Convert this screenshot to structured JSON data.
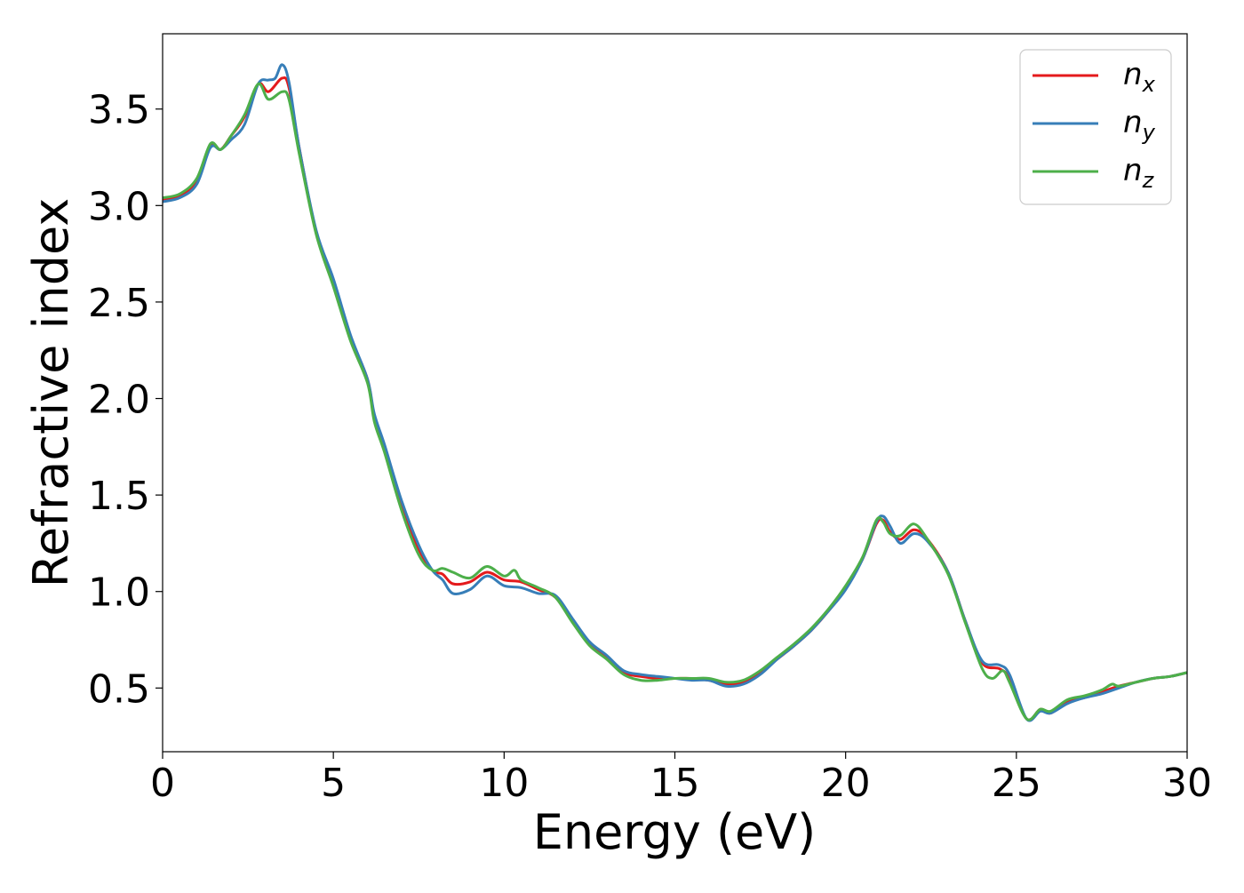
{
  "chart_data": {
    "type": "line",
    "title": "",
    "xlabel": "Energy (eV)",
    "ylabel": "Refractive index",
    "xlim": [
      0,
      30
    ],
    "ylim": [
      0.17,
      3.89
    ],
    "xticks": [
      0,
      5,
      10,
      15,
      20,
      25,
      30
    ],
    "xtick_labels": [
      "0",
      "5",
      "10",
      "15",
      "20",
      "25",
      "30"
    ],
    "yticks": [
      0.5,
      1.0,
      1.5,
      2.0,
      2.5,
      3.0,
      3.5
    ],
    "ytick_labels": [
      "0.5",
      "1.0",
      "1.5",
      "2.0",
      "2.5",
      "3.0",
      "3.5"
    ],
    "grid": false,
    "legend_position": "upper right",
    "series": [
      {
        "name": "n_x",
        "legend_base": "n",
        "legend_sub": "x",
        "color": "#e41a1c",
        "points": [
          [
            0,
            3.03
          ],
          [
            0.5,
            3.05
          ],
          [
            1.0,
            3.13
          ],
          [
            1.4,
            3.31
          ],
          [
            1.7,
            3.29
          ],
          [
            2.0,
            3.36
          ],
          [
            2.4,
            3.46
          ],
          [
            2.8,
            3.63
          ],
          [
            3.1,
            3.59
          ],
          [
            3.5,
            3.66
          ],
          [
            3.7,
            3.61
          ],
          [
            4.0,
            3.3
          ],
          [
            4.5,
            2.86
          ],
          [
            5.0,
            2.6
          ],
          [
            5.5,
            2.32
          ],
          [
            6.0,
            2.1
          ],
          [
            6.2,
            1.9
          ],
          [
            6.5,
            1.74
          ],
          [
            7.0,
            1.45
          ],
          [
            7.5,
            1.22
          ],
          [
            7.9,
            1.11
          ],
          [
            8.2,
            1.09
          ],
          [
            8.5,
            1.04
          ],
          [
            9.0,
            1.05
          ],
          [
            9.5,
            1.1
          ],
          [
            10.0,
            1.06
          ],
          [
            10.5,
            1.05
          ],
          [
            11.0,
            1.01
          ],
          [
            11.5,
            0.97
          ],
          [
            12.0,
            0.85
          ],
          [
            12.5,
            0.73
          ],
          [
            13.0,
            0.66
          ],
          [
            13.5,
            0.58
          ],
          [
            14.0,
            0.56
          ],
          [
            14.5,
            0.55
          ],
          [
            15.0,
            0.55
          ],
          [
            15.5,
            0.55
          ],
          [
            16.0,
            0.54
          ],
          [
            16.5,
            0.52
          ],
          [
            17.0,
            0.53
          ],
          [
            17.5,
            0.58
          ],
          [
            18.0,
            0.65
          ],
          [
            18.5,
            0.72
          ],
          [
            19.0,
            0.8
          ],
          [
            19.5,
            0.9
          ],
          [
            20.0,
            1.02
          ],
          [
            20.5,
            1.17
          ],
          [
            20.9,
            1.35
          ],
          [
            21.1,
            1.37
          ],
          [
            21.3,
            1.31
          ],
          [
            21.6,
            1.27
          ],
          [
            22.0,
            1.32
          ],
          [
            22.4,
            1.27
          ],
          [
            23.0,
            1.1
          ],
          [
            23.5,
            0.85
          ],
          [
            24.0,
            0.63
          ],
          [
            24.5,
            0.6
          ],
          [
            24.8,
            0.55
          ],
          [
            25.3,
            0.34
          ],
          [
            25.7,
            0.39
          ],
          [
            26.0,
            0.37
          ],
          [
            26.5,
            0.43
          ],
          [
            27.0,
            0.45
          ],
          [
            27.5,
            0.48
          ],
          [
            28.0,
            0.51
          ],
          [
            28.5,
            0.53
          ],
          [
            29.0,
            0.55
          ],
          [
            29.5,
            0.56
          ],
          [
            30.0,
            0.58
          ]
        ]
      },
      {
        "name": "n_y",
        "legend_base": "n",
        "legend_sub": "y",
        "color": "#377eb8",
        "points": [
          [
            0,
            3.02
          ],
          [
            0.5,
            3.04
          ],
          [
            1.0,
            3.11
          ],
          [
            1.4,
            3.3
          ],
          [
            1.7,
            3.29
          ],
          [
            2.0,
            3.34
          ],
          [
            2.4,
            3.42
          ],
          [
            2.8,
            3.63
          ],
          [
            3.1,
            3.65
          ],
          [
            3.3,
            3.66
          ],
          [
            3.5,
            3.73
          ],
          [
            3.7,
            3.64
          ],
          [
            4.0,
            3.3
          ],
          [
            4.5,
            2.87
          ],
          [
            5.0,
            2.62
          ],
          [
            5.5,
            2.33
          ],
          [
            6.0,
            2.1
          ],
          [
            6.2,
            1.92
          ],
          [
            6.5,
            1.76
          ],
          [
            7.0,
            1.47
          ],
          [
            7.5,
            1.24
          ],
          [
            7.9,
            1.11
          ],
          [
            8.2,
            1.06
          ],
          [
            8.5,
            0.99
          ],
          [
            9.0,
            1.01
          ],
          [
            9.5,
            1.08
          ],
          [
            10.0,
            1.03
          ],
          [
            10.5,
            1.02
          ],
          [
            11.0,
            0.99
          ],
          [
            11.5,
            0.98
          ],
          [
            12.0,
            0.86
          ],
          [
            12.5,
            0.74
          ],
          [
            13.0,
            0.67
          ],
          [
            13.5,
            0.59
          ],
          [
            14.0,
            0.57
          ],
          [
            14.5,
            0.56
          ],
          [
            15.0,
            0.55
          ],
          [
            15.5,
            0.54
          ],
          [
            16.0,
            0.54
          ],
          [
            16.5,
            0.51
          ],
          [
            17.0,
            0.52
          ],
          [
            17.5,
            0.57
          ],
          [
            18.0,
            0.65
          ],
          [
            18.5,
            0.72
          ],
          [
            19.0,
            0.8
          ],
          [
            19.5,
            0.9
          ],
          [
            20.0,
            1.01
          ],
          [
            20.5,
            1.17
          ],
          [
            20.9,
            1.36
          ],
          [
            21.1,
            1.39
          ],
          [
            21.3,
            1.34
          ],
          [
            21.6,
            1.25
          ],
          [
            22.0,
            1.3
          ],
          [
            22.4,
            1.26
          ],
          [
            23.0,
            1.1
          ],
          [
            23.5,
            0.85
          ],
          [
            24.0,
            0.64
          ],
          [
            24.5,
            0.62
          ],
          [
            24.8,
            0.57
          ],
          [
            25.3,
            0.34
          ],
          [
            25.7,
            0.38
          ],
          [
            26.0,
            0.37
          ],
          [
            26.5,
            0.42
          ],
          [
            27.0,
            0.45
          ],
          [
            27.5,
            0.47
          ],
          [
            28.0,
            0.5
          ],
          [
            28.5,
            0.53
          ],
          [
            29.0,
            0.55
          ],
          [
            29.5,
            0.56
          ],
          [
            30.0,
            0.58
          ]
        ]
      },
      {
        "name": "n_z",
        "legend_base": "n",
        "legend_sub": "z",
        "color": "#4daf4a",
        "points": [
          [
            0,
            3.04
          ],
          [
            0.5,
            3.06
          ],
          [
            1.0,
            3.14
          ],
          [
            1.4,
            3.32
          ],
          [
            1.7,
            3.29
          ],
          [
            2.0,
            3.36
          ],
          [
            2.4,
            3.47
          ],
          [
            2.8,
            3.63
          ],
          [
            3.1,
            3.55
          ],
          [
            3.5,
            3.59
          ],
          [
            3.7,
            3.55
          ],
          [
            4.0,
            3.27
          ],
          [
            4.5,
            2.85
          ],
          [
            5.0,
            2.58
          ],
          [
            5.5,
            2.3
          ],
          [
            6.0,
            2.08
          ],
          [
            6.2,
            1.88
          ],
          [
            6.5,
            1.72
          ],
          [
            7.0,
            1.42
          ],
          [
            7.5,
            1.19
          ],
          [
            7.9,
            1.11
          ],
          [
            8.2,
            1.12
          ],
          [
            8.5,
            1.1
          ],
          [
            9.0,
            1.07
          ],
          [
            9.5,
            1.13
          ],
          [
            10.0,
            1.08
          ],
          [
            10.3,
            1.11
          ],
          [
            10.5,
            1.06
          ],
          [
            11.0,
            1.02
          ],
          [
            11.5,
            0.97
          ],
          [
            12.0,
            0.84
          ],
          [
            12.5,
            0.72
          ],
          [
            13.0,
            0.65
          ],
          [
            13.5,
            0.57
          ],
          [
            14.0,
            0.54
          ],
          [
            14.5,
            0.54
          ],
          [
            15.0,
            0.55
          ],
          [
            15.5,
            0.55
          ],
          [
            16.0,
            0.55
          ],
          [
            16.5,
            0.53
          ],
          [
            17.0,
            0.54
          ],
          [
            17.5,
            0.59
          ],
          [
            18.0,
            0.66
          ],
          [
            18.5,
            0.73
          ],
          [
            19.0,
            0.81
          ],
          [
            19.5,
            0.91
          ],
          [
            20.0,
            1.03
          ],
          [
            20.5,
            1.18
          ],
          [
            20.9,
            1.37
          ],
          [
            21.1,
            1.36
          ],
          [
            21.3,
            1.3
          ],
          [
            21.6,
            1.29
          ],
          [
            22.0,
            1.35
          ],
          [
            22.4,
            1.27
          ],
          [
            23.0,
            1.09
          ],
          [
            23.5,
            0.84
          ],
          [
            24.0,
            0.6
          ],
          [
            24.3,
            0.55
          ],
          [
            24.6,
            0.59
          ],
          [
            24.8,
            0.53
          ],
          [
            25.3,
            0.34
          ],
          [
            25.7,
            0.39
          ],
          [
            26.0,
            0.38
          ],
          [
            26.5,
            0.44
          ],
          [
            27.0,
            0.46
          ],
          [
            27.5,
            0.49
          ],
          [
            27.8,
            0.52
          ],
          [
            28.0,
            0.51
          ],
          [
            28.5,
            0.53
          ],
          [
            29.0,
            0.55
          ],
          [
            29.5,
            0.56
          ],
          [
            30.0,
            0.58
          ]
        ]
      }
    ]
  }
}
